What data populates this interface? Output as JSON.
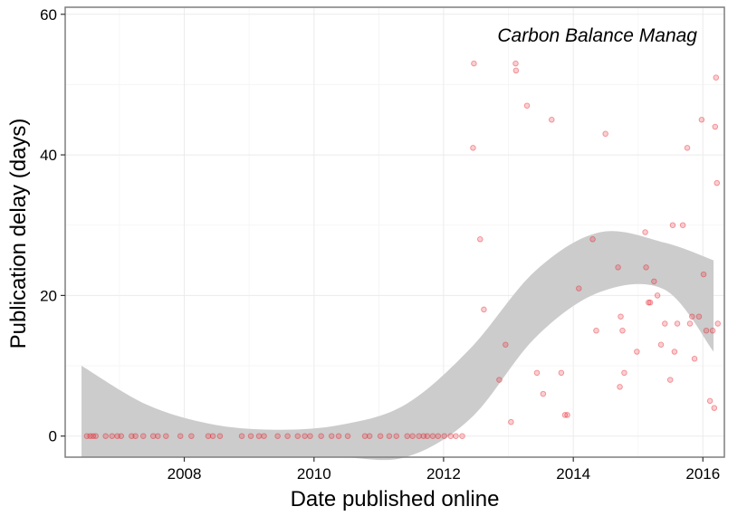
{
  "chart_data": {
    "type": "scatter",
    "title": "Carbon Balance Manag",
    "xlabel": "Date published online",
    "ylabel": "Publication delay (days)",
    "x_type": "date",
    "xlim": [
      "2006-03-01",
      "2016-05-01"
    ],
    "ylim": [
      -3,
      61
    ],
    "x_ticks": [
      "2008",
      "2010",
      "2012",
      "2014",
      "2016"
    ],
    "x_tick_values": [
      "2008-01-01",
      "2010-01-01",
      "2012-01-01",
      "2014-01-01",
      "2016-01-01"
    ],
    "y_ticks": [
      "0",
      "20",
      "40",
      "60"
    ],
    "y_tick_values": [
      0,
      20,
      40,
      60
    ],
    "grid": true,
    "point_color": "#e8202a",
    "band_color": "#cccccc",
    "series": [
      {
        "points": [
          [
            "2006-07-01",
            0
          ],
          [
            "2006-07-20",
            0
          ],
          [
            "2006-08-05",
            0
          ],
          [
            "2006-08-20",
            0
          ],
          [
            "2006-10-15",
            0
          ],
          [
            "2006-11-20",
            0
          ],
          [
            "2006-12-20",
            0
          ],
          [
            "2007-01-10",
            0
          ],
          [
            "2007-03-10",
            0
          ],
          [
            "2007-04-01",
            0
          ],
          [
            "2007-05-15",
            0
          ],
          [
            "2007-07-10",
            0
          ],
          [
            "2007-08-05",
            0
          ],
          [
            "2007-09-20",
            0
          ],
          [
            "2007-12-10",
            0
          ],
          [
            "2008-02-10",
            0
          ],
          [
            "2008-05-15",
            0
          ],
          [
            "2008-06-10",
            0
          ],
          [
            "2008-07-20",
            0
          ],
          [
            "2008-11-20",
            0
          ],
          [
            "2009-01-10",
            0
          ],
          [
            "2009-02-25",
            0
          ],
          [
            "2009-03-25",
            0
          ],
          [
            "2009-06-10",
            0
          ],
          [
            "2009-08-05",
            0
          ],
          [
            "2009-10-01",
            0
          ],
          [
            "2009-11-10",
            0
          ],
          [
            "2009-12-10",
            0
          ],
          [
            "2010-02-10",
            0
          ],
          [
            "2010-04-10",
            0
          ],
          [
            "2010-05-20",
            0
          ],
          [
            "2010-07-10",
            0
          ],
          [
            "2010-10-15",
            0
          ],
          [
            "2010-11-10",
            0
          ],
          [
            "2011-01-10",
            0
          ],
          [
            "2011-03-01",
            0
          ],
          [
            "2011-04-10",
            0
          ],
          [
            "2011-06-10",
            0
          ],
          [
            "2011-07-10",
            0
          ],
          [
            "2011-08-15",
            0
          ],
          [
            "2011-09-10",
            0
          ],
          [
            "2011-10-01",
            0
          ],
          [
            "2011-11-01",
            0
          ],
          [
            "2011-12-01",
            0
          ],
          [
            "2012-01-05",
            0
          ],
          [
            "2012-02-10",
            0
          ],
          [
            "2012-03-10",
            0
          ],
          [
            "2012-04-15",
            0
          ],
          [
            "2012-06-20",
            53
          ],
          [
            "2012-06-15",
            41
          ],
          [
            "2012-07-25",
            28
          ],
          [
            "2012-08-15",
            18
          ],
          [
            "2012-11-10",
            8
          ],
          [
            "2012-12-15",
            13
          ],
          [
            "2013-01-15",
            2
          ],
          [
            "2013-02-10",
            53
          ],
          [
            "2013-02-12",
            52
          ],
          [
            "2013-04-15",
            47
          ],
          [
            "2013-06-10",
            9
          ],
          [
            "2013-07-15",
            6
          ],
          [
            "2013-09-01",
            45
          ],
          [
            "2013-10-25",
            9
          ],
          [
            "2013-11-15",
            3
          ],
          [
            "2013-11-28",
            3
          ],
          [
            "2014-02-01",
            21
          ],
          [
            "2014-04-20",
            28
          ],
          [
            "2014-05-10",
            15
          ],
          [
            "2014-07-01",
            43
          ],
          [
            "2014-09-10",
            24
          ],
          [
            "2014-09-25",
            17
          ],
          [
            "2014-10-05",
            15
          ],
          [
            "2014-10-15",
            9
          ],
          [
            "2014-09-20",
            7
          ],
          [
            "2014-12-25",
            12
          ],
          [
            "2015-02-10",
            29
          ],
          [
            "2015-02-15",
            24
          ],
          [
            "2015-03-01",
            19
          ],
          [
            "2015-03-10",
            19
          ],
          [
            "2015-04-01",
            22
          ],
          [
            "2015-04-20",
            20
          ],
          [
            "2015-05-10",
            13
          ],
          [
            "2015-06-01",
            16
          ],
          [
            "2015-07-15",
            30
          ],
          [
            "2015-07-25",
            12
          ],
          [
            "2015-07-01",
            8
          ],
          [
            "2015-08-10",
            16
          ],
          [
            "2015-09-10",
            30
          ],
          [
            "2015-10-05",
            41
          ],
          [
            "2015-10-20",
            16
          ],
          [
            "2015-11-01",
            17
          ],
          [
            "2015-11-15",
            11
          ],
          [
            "2015-12-10",
            17
          ],
          [
            "2015-12-25",
            45
          ],
          [
            "2016-01-05",
            23
          ],
          [
            "2016-01-20",
            15
          ],
          [
            "2016-02-10",
            5
          ],
          [
            "2016-02-25",
            15
          ],
          [
            "2016-03-10",
            44
          ],
          [
            "2016-03-15",
            51
          ],
          [
            "2016-03-20",
            36
          ],
          [
            "2016-03-25",
            16
          ],
          [
            "2016-03-05",
            4
          ]
        ]
      }
    ],
    "smooth_band": {
      "x": [
        "2006-06-01",
        "2007-06-01",
        "2008-06-01",
        "2009-06-01",
        "2010-06-01",
        "2011-06-01",
        "2012-06-01",
        "2013-06-01",
        "2014-06-01",
        "2015-06-01",
        "2016-03-01"
      ],
      "upper": [
        10.0,
        4.5,
        1.7,
        0.9,
        1.6,
        4.5,
        12.5,
        23.5,
        29.0,
        27.5,
        25.0
      ],
      "lower": [
        -3.0,
        -3.0,
        -3.0,
        -3.0,
        -3.0,
        -3.0,
        2.5,
        14.0,
        20.5,
        20.8,
        12.0
      ]
    }
  }
}
